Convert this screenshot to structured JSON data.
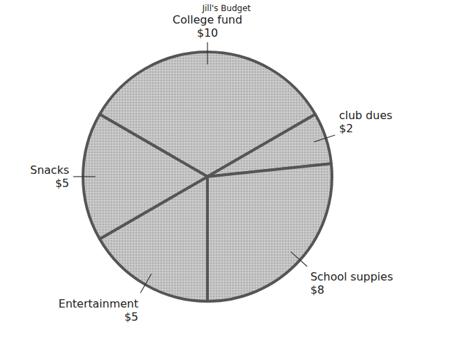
{
  "chart_data": {
    "type": "pie",
    "title": "Jill's Budget",
    "categories": [
      "College fund",
      "club dues",
      "School suppies",
      "Entertainment",
      "Snacks"
    ],
    "values": [
      10,
      2,
      8,
      5,
      5
    ],
    "value_labels": [
      "$10",
      "$2",
      "$8",
      "$5",
      "$5"
    ],
    "data_labels": true,
    "color": "#c4c4c4"
  }
}
